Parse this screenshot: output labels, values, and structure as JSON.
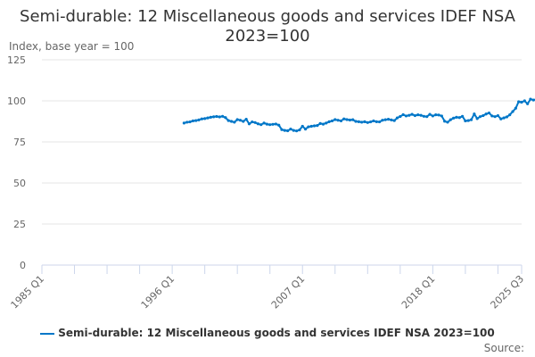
{
  "chart_data": {
    "type": "line",
    "title": "Semi-durable: 12 Miscellaneous goods and services IDEF NSA 2023=100",
    "ylabel": "Index, base year = 100",
    "xlabel": "",
    "ylim": [
      0,
      125
    ],
    "yticks": [
      0,
      25,
      50,
      75,
      100,
      125
    ],
    "xrange": [
      "1985 Q1",
      "2025 Q3"
    ],
    "xtick_labels": [
      "1985 Q1",
      "1996 Q1",
      "2007 Q1",
      "2018 Q1",
      "2025 Q3"
    ],
    "grid": true,
    "legend_position": "bottom",
    "start": "1997 Q1",
    "series": [
      {
        "name": "Semi-durable: 12 Miscellaneous goods and services IDEF NSA 2023=100",
        "color": "#0077c8",
        "values": [
          86.5,
          87,
          87.2,
          87.8,
          88,
          88.4,
          89,
          89.2,
          89.6,
          90,
          90.3,
          90.5,
          90.2,
          90.6,
          89.8,
          88,
          87.5,
          87,
          88.6,
          88.2,
          87.5,
          88.8,
          86,
          87.2,
          86.8,
          86,
          85.5,
          86.5,
          85.8,
          85.5,
          85.7,
          85.9,
          85.2,
          82.5,
          82,
          81.8,
          82.8,
          82,
          81.7,
          82.3,
          84.5,
          82.8,
          84.2,
          84.5,
          84.8,
          85,
          86.2,
          85.8,
          86.5,
          87.3,
          87.8,
          88.6,
          88.2,
          87.8,
          89,
          88.6,
          88.3,
          88.5,
          87.5,
          87.3,
          87,
          87.3,
          86.8,
          87.2,
          87.8,
          87.3,
          87.2,
          88.2,
          88.5,
          88.8,
          88.4,
          88,
          89.6,
          90.5,
          91.6,
          90.8,
          91.2,
          91.8,
          91,
          91.5,
          91.2,
          90.6,
          90.4,
          91.8,
          90.8,
          91.5,
          91.4,
          90.8,
          87.6,
          87,
          88.5,
          89.5,
          90,
          89.8,
          90.6,
          87.8,
          88,
          88.5,
          92,
          89.2,
          90.4,
          91,
          92,
          92.6,
          90.8,
          90.4,
          91,
          89,
          89.6,
          90.2,
          91.5,
          93.5,
          95.5,
          99.5,
          99.2,
          100,
          98.2,
          101,
          100.5,
          101,
          98.5,
          98.2,
          98,
          98.5,
          97,
          97.2,
          97.8
        ]
      }
    ]
  },
  "legend": {
    "label": "Semi-durable: 12 Miscellaneous goods and services IDEF NSA 2023=100"
  },
  "source": "Source:"
}
